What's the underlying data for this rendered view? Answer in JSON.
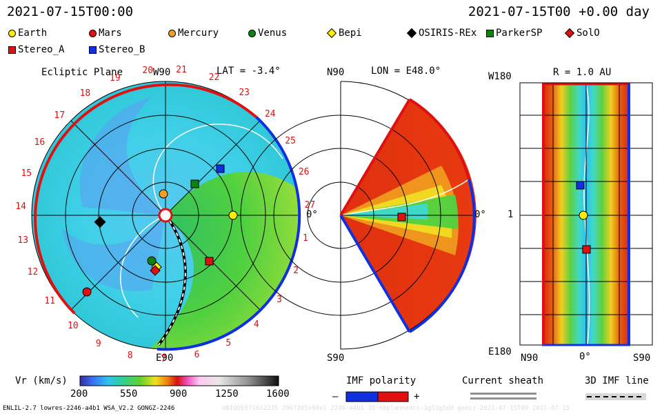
{
  "header": {
    "left_time": "2021-07-15T00:00",
    "right_time": "2021-07-15T00 +0.00 day"
  },
  "legend": {
    "items": [
      {
        "label": "Earth",
        "shape": "circle",
        "color": "#ffee00"
      },
      {
        "label": "Mars",
        "shape": "circle",
        "color": "#e01010"
      },
      {
        "label": "Mercury",
        "shape": "circle",
        "color": "#f0a020"
      },
      {
        "label": "Venus",
        "shape": "circle",
        "color": "#108010"
      },
      {
        "label": "Bepi",
        "shape": "diamond",
        "color": "#ffee00"
      },
      {
        "label": "OSIRIS-REx",
        "shape": "diamond",
        "color": "#000000"
      },
      {
        "label": "ParkerSP",
        "shape": "square",
        "color": "#108010"
      },
      {
        "label": "SolO",
        "shape": "diamond",
        "color": "#e01010"
      },
      {
        "label": "Stereo_A",
        "shape": "square",
        "color": "#e01010"
      },
      {
        "label": "Stereo_B",
        "shape": "square",
        "color": "#1030e0"
      }
    ]
  },
  "ecliptic": {
    "title": "Ecliptic Plane",
    "top_label": "W90",
    "lat_label": "LAT = -3.4°",
    "right_label": "0°",
    "bottom_label": "E90",
    "carrington_ticks": [
      "20",
      "21",
      "22",
      "23",
      "24",
      "25",
      "26",
      "27",
      "1",
      "2",
      "3",
      "4",
      "5",
      "6",
      "7",
      "8",
      "9",
      "10",
      "11",
      "12",
      "13",
      "14",
      "15",
      "16",
      "17",
      "18",
      "19"
    ]
  },
  "meridional": {
    "top_label": "N90",
    "lon_label": "LON = E48.0°",
    "right_label": "0°",
    "bottom_label": "S90"
  },
  "radial": {
    "top_label": "W180",
    "r_label": "R = 1.0 AU",
    "left_mid_label": "1",
    "bottom_left_label": "E180",
    "x_labels": [
      "N90",
      "0°",
      "S90"
    ]
  },
  "colorbar": {
    "label": "Vr (km/s)",
    "ticks": [
      "200",
      "550",
      "900",
      "1250",
      "1600"
    ]
  },
  "imf": {
    "polarity_label": "IMF polarity",
    "minus": "–",
    "plus": "+",
    "sheath_label": "Current sheath",
    "line_label": "3D IMF line"
  },
  "footer": {
    "left": "ENLIL-2.7 lowres-2246-a4b1 WSA_V2.2 GONGZ-2246",
    "right_faint": "UNIQUE071612235 2067305x90x1 2246-a4b1 35-noplannedcs-1g53g5dd goncz-2021-07-15T00 2021-07-15"
  }
}
